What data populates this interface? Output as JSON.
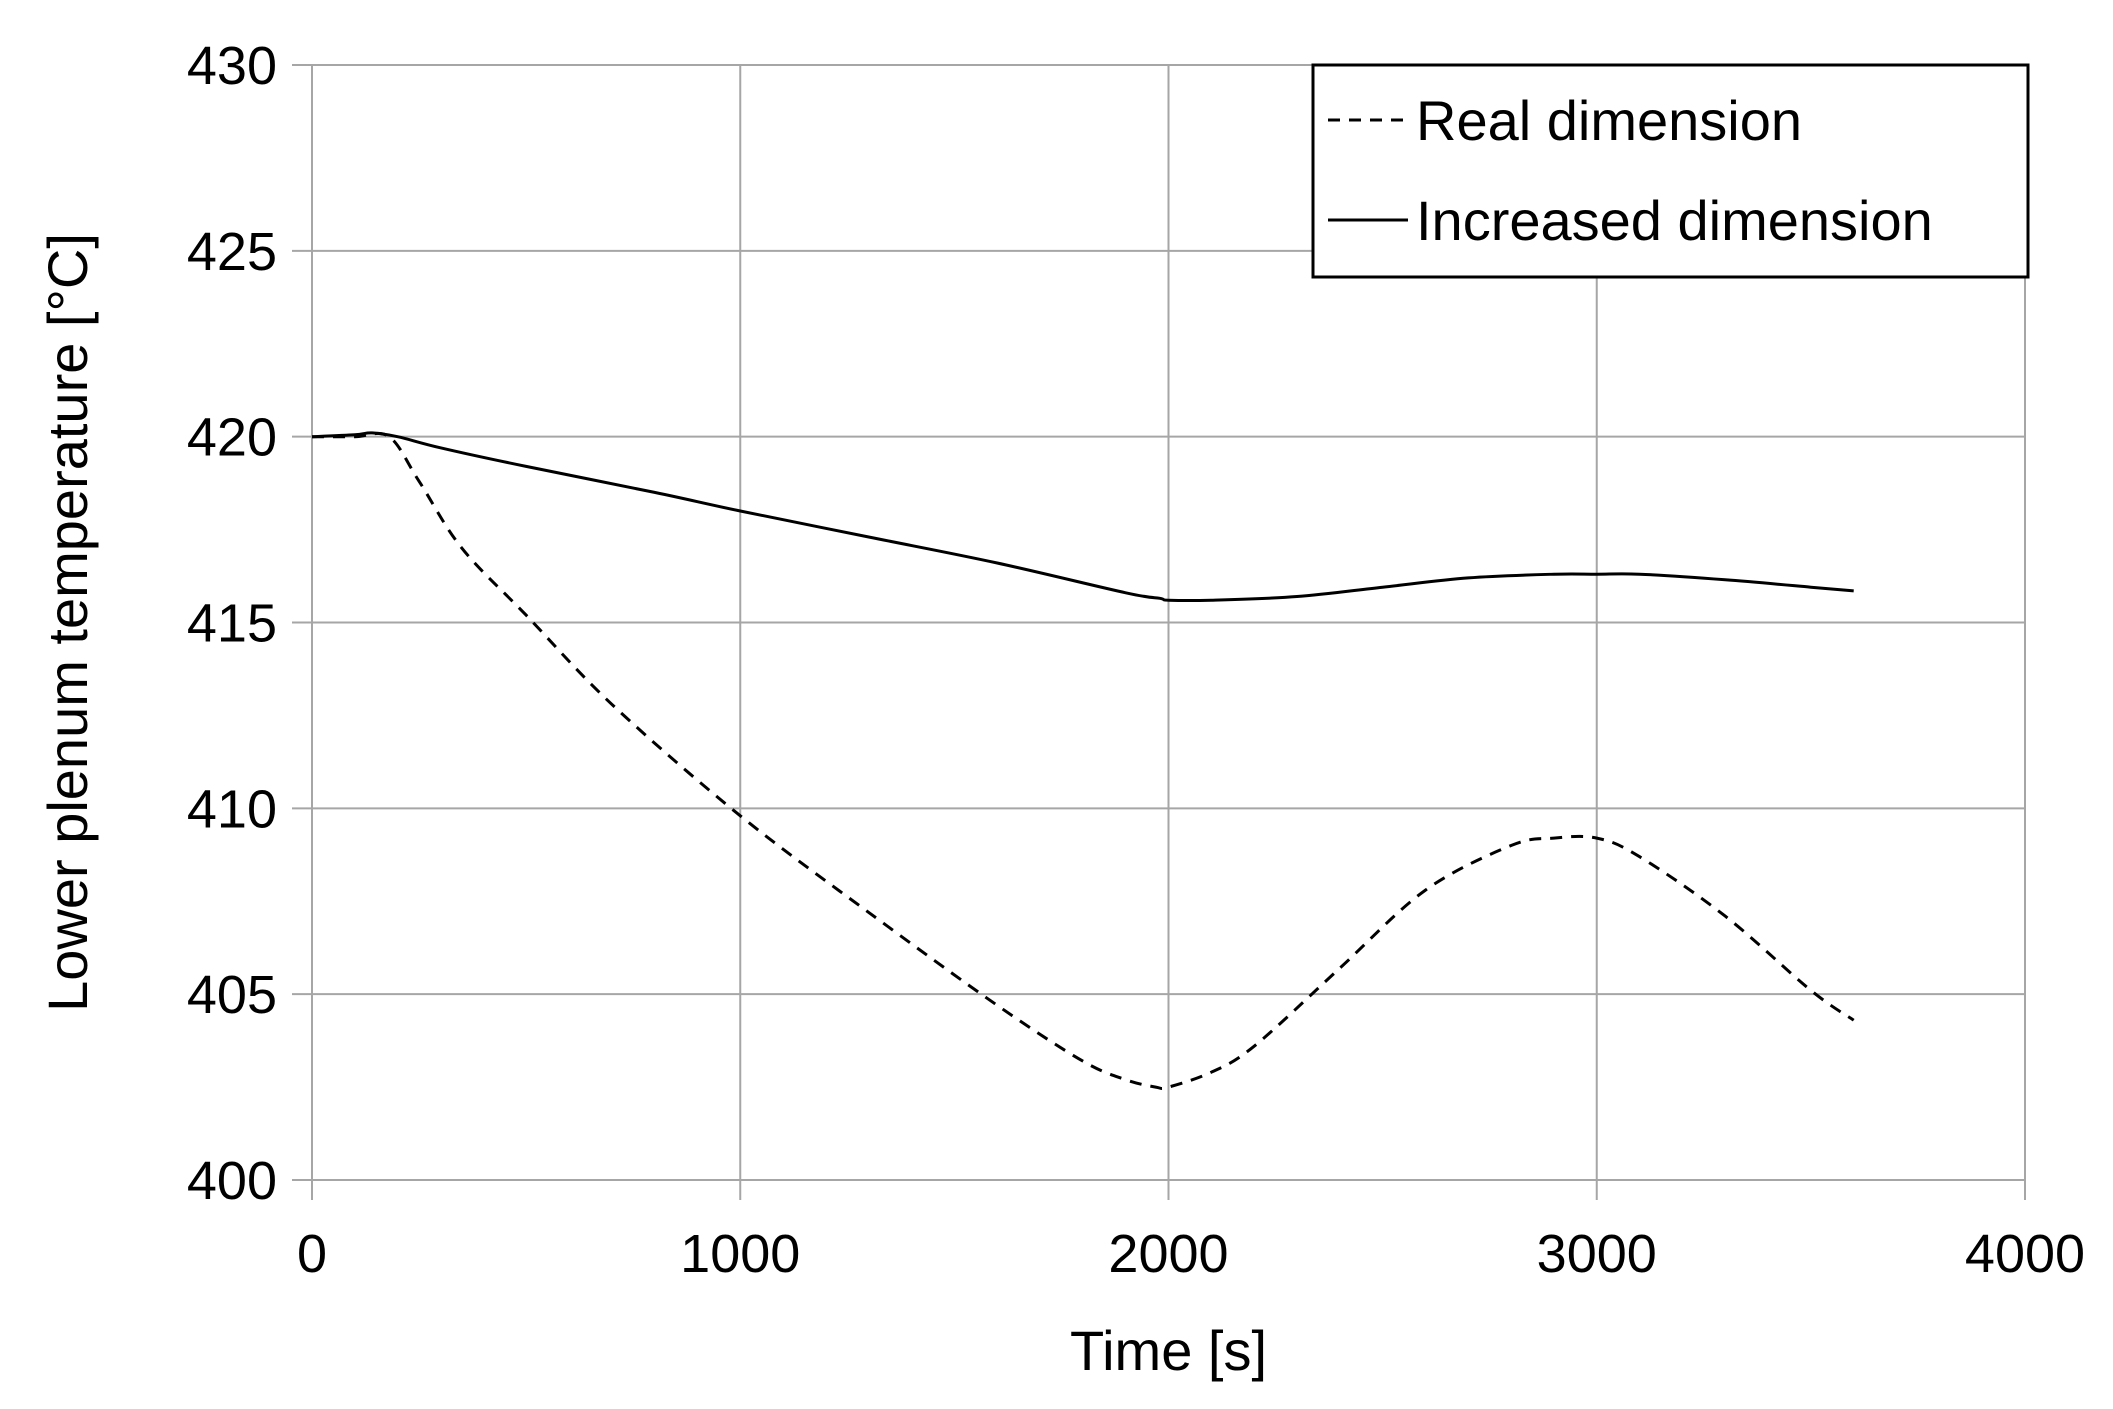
{
  "chart_data": {
    "type": "line",
    "title": "",
    "xlabel": "Time [s]",
    "ylabel": "Lower plenum temperature [°C]",
    "xlim": [
      0,
      4000
    ],
    "ylim": [
      400,
      430
    ],
    "xticks": [
      0,
      1000,
      2000,
      3000,
      4000
    ],
    "yticks": [
      400,
      405,
      410,
      415,
      420,
      425,
      430
    ],
    "xtick_labels": [
      "0",
      "1000",
      "2000",
      "3000",
      "4000"
    ],
    "ytick_labels": [
      "400",
      "405",
      "410",
      "415",
      "420",
      "425",
      "430"
    ],
    "grid": true,
    "legend_position": "top-right",
    "series": [
      {
        "name": "Real dimension",
        "style": "dashed",
        "color": "#000000",
        "x": [
          0,
          100,
          180,
          250,
          350,
          500,
          700,
          1000,
          1300,
          1600,
          1800,
          1900,
          1970,
          2000,
          2100,
          2200,
          2400,
          2600,
          2800,
          2900,
          3000,
          3100,
          3300,
          3500,
          3600
        ],
        "y": [
          420.0,
          420.0,
          420.0,
          418.8,
          417.0,
          415.2,
          412.8,
          409.8,
          407.2,
          404.7,
          403.2,
          402.7,
          402.5,
          402.5,
          402.9,
          403.6,
          405.7,
          407.8,
          409.0,
          409.2,
          409.2,
          408.7,
          407.1,
          405.1,
          404.3
        ]
      },
      {
        "name": "Increased dimension",
        "style": "solid",
        "color": "#000000",
        "x": [
          0,
          100,
          140,
          200,
          300,
          500,
          800,
          1000,
          1300,
          1600,
          1900,
          1980,
          2000,
          2100,
          2300,
          2500,
          2700,
          2900,
          3000,
          3100,
          3300,
          3500,
          3600
        ],
        "y": [
          420.0,
          420.05,
          420.1,
          420.0,
          419.7,
          419.2,
          418.5,
          418.0,
          417.3,
          416.6,
          415.8,
          415.65,
          415.6,
          415.6,
          415.7,
          415.95,
          416.2,
          416.3,
          416.3,
          416.3,
          416.15,
          415.95,
          415.85
        ]
      }
    ]
  },
  "colors": {
    "gridline": "#a6a6a6",
    "line": "#000000",
    "background": "#ffffff"
  }
}
